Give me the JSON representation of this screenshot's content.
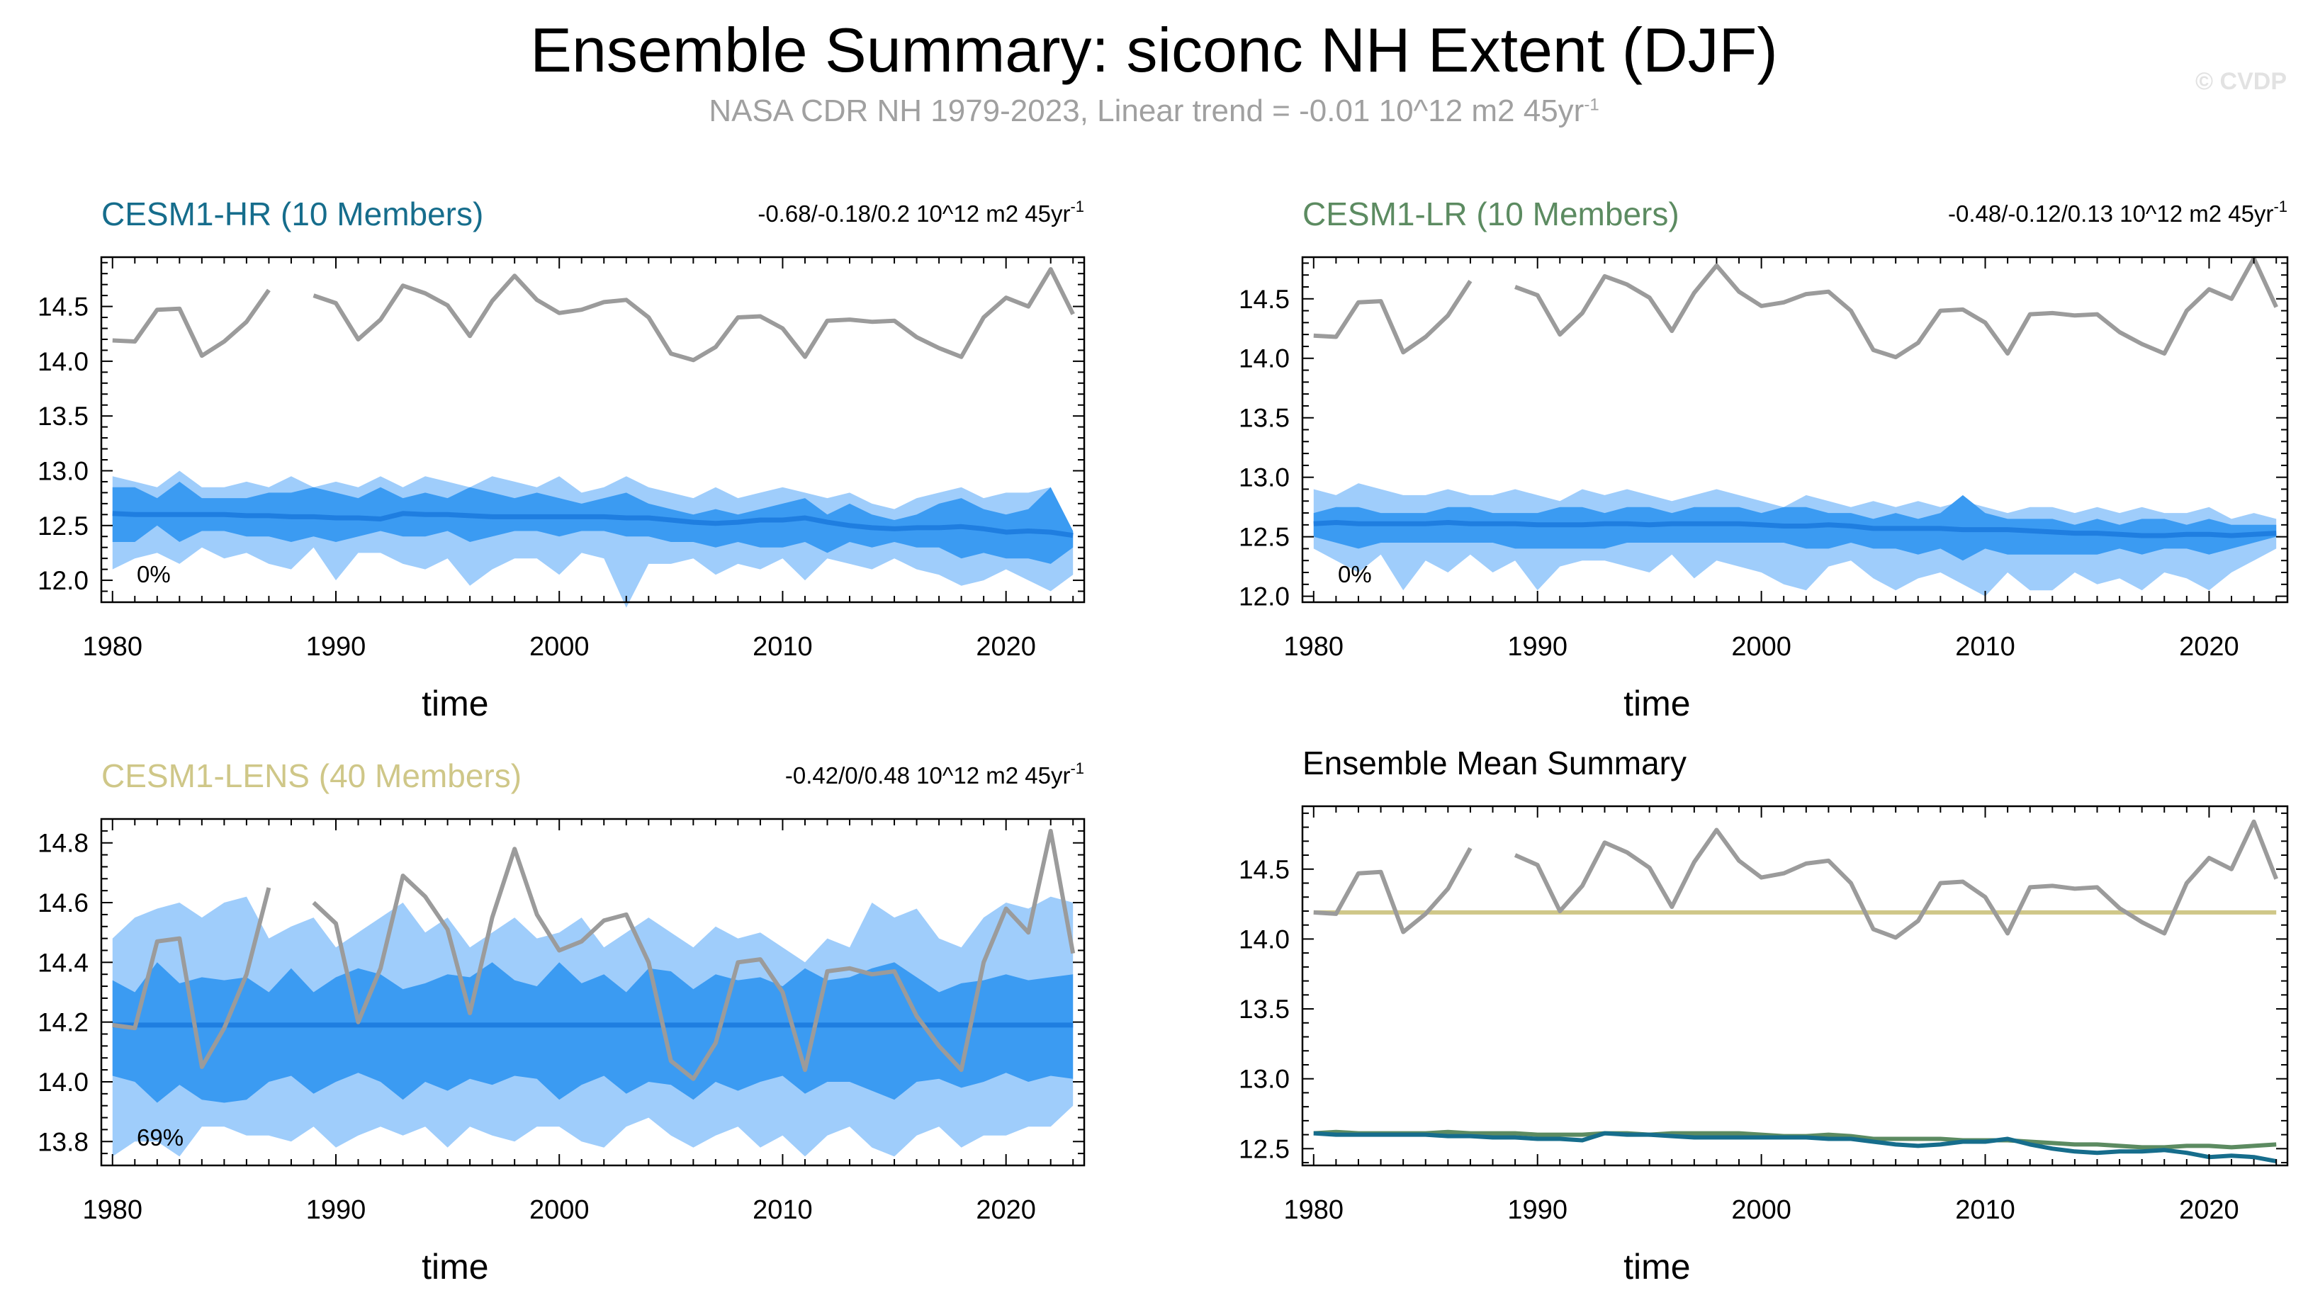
{
  "title": "Ensemble Summary: siconc NH Extent (DJF)",
  "subtitle": "NASA CDR NH 1979-2023, Linear trend = -0.01 10^12 m2 45yr",
  "subtitle_sup": "-1",
  "watermark": "© CVDP",
  "colors": {
    "hr": "#166d8c",
    "lr": "#5c8b61",
    "lens": "#cfc788",
    "obs": "#9b9b9b",
    "spread_outer": "#9fcdfb",
    "spread_inner": "#3b9bf2",
    "ens_mean": "#1f7ee0"
  },
  "chart_data": [
    {
      "id": "hr",
      "type": "area",
      "title": "CESM1-HR (10 Members)",
      "title_color": "#166d8c",
      "trend_label": "-0.68/-0.18/0.2 10^12 m2 45yr",
      "trend_sup": "-1",
      "percent_label": "0%",
      "xlabel": "time",
      "xlim": [
        1979.5,
        2023.5
      ],
      "ylim": [
        11.8,
        14.95
      ],
      "xticks": [
        1980,
        1990,
        2000,
        2010,
        2020
      ],
      "yticks": [
        12.0,
        12.5,
        13.0,
        13.5,
        14.0,
        14.5
      ],
      "ytick_labels": [
        "12.0",
        "12.5",
        "13.0",
        "13.5",
        "14.0",
        "14.5"
      ],
      "spread": {
        "x_start": 1980,
        "outer_lo": [
          12.1,
          12.2,
          12.25,
          12.15,
          12.3,
          12.2,
          12.25,
          12.15,
          12.1,
          12.3,
          12.0,
          12.25,
          12.25,
          12.15,
          12.1,
          12.2,
          11.95,
          12.1,
          12.2,
          12.2,
          12.05,
          12.25,
          12.2,
          11.75,
          12.15,
          12.15,
          12.2,
          12.05,
          12.15,
          12.1,
          12.2,
          12.0,
          12.2,
          12.15,
          12.1,
          12.2,
          12.1,
          12.05,
          11.95,
          12.0,
          12.1,
          12.0,
          11.9,
          12.05
        ],
        "inner_lo": [
          12.35,
          12.35,
          12.5,
          12.35,
          12.45,
          12.45,
          12.4,
          12.4,
          12.35,
          12.4,
          12.35,
          12.4,
          12.45,
          12.4,
          12.4,
          12.45,
          12.35,
          12.4,
          12.45,
          12.45,
          12.4,
          12.45,
          12.45,
          12.4,
          12.4,
          12.35,
          12.35,
          12.3,
          12.35,
          12.3,
          12.3,
          12.35,
          12.25,
          12.35,
          12.3,
          12.35,
          12.3,
          12.3,
          12.2,
          12.25,
          12.2,
          12.2,
          12.15,
          12.3
        ],
        "inner_hi": [
          12.85,
          12.85,
          12.75,
          12.9,
          12.75,
          12.75,
          12.75,
          12.8,
          12.8,
          12.85,
          12.8,
          12.75,
          12.85,
          12.75,
          12.8,
          12.75,
          12.85,
          12.8,
          12.75,
          12.8,
          12.75,
          12.7,
          12.75,
          12.8,
          12.7,
          12.65,
          12.6,
          12.65,
          12.6,
          12.65,
          12.7,
          12.75,
          12.6,
          12.7,
          12.6,
          12.55,
          12.6,
          12.7,
          12.75,
          12.65,
          12.6,
          12.65,
          12.85,
          12.45
        ],
        "outer_hi": [
          12.95,
          12.9,
          12.85,
          13.0,
          12.85,
          12.85,
          12.9,
          12.85,
          12.95,
          12.85,
          12.9,
          12.85,
          12.95,
          12.85,
          12.95,
          12.9,
          12.85,
          12.95,
          12.9,
          12.85,
          12.95,
          12.8,
          12.85,
          12.95,
          12.85,
          12.8,
          12.75,
          12.85,
          12.75,
          12.8,
          12.85,
          12.8,
          12.75,
          12.8,
          12.7,
          12.65,
          12.75,
          12.8,
          12.85,
          12.75,
          12.8,
          12.8,
          12.85,
          12.45
        ]
      },
      "ens_mean": [
        12.61,
        12.6,
        12.6,
        12.6,
        12.6,
        12.6,
        12.59,
        12.59,
        12.58,
        12.58,
        12.57,
        12.57,
        12.56,
        12.61,
        12.6,
        12.6,
        12.59,
        12.58,
        12.58,
        12.58,
        12.58,
        12.58,
        12.58,
        12.57,
        12.57,
        12.55,
        12.53,
        12.52,
        12.53,
        12.55,
        12.55,
        12.57,
        12.53,
        12.5,
        12.48,
        12.47,
        12.48,
        12.48,
        12.49,
        12.47,
        12.44,
        12.45,
        12.44,
        12.41
      ]
    },
    {
      "id": "lr",
      "type": "area",
      "title": "CESM1-LR (10 Members)",
      "title_color": "#5c8b61",
      "trend_label": "-0.48/-0.12/0.13 10^12 m2 45yr",
      "trend_sup": "-1",
      "percent_label": "0%",
      "xlabel": "time",
      "xlim": [
        1979.5,
        2023.5
      ],
      "ylim": [
        11.95,
        14.85
      ],
      "xticks": [
        1980,
        1990,
        2000,
        2010,
        2020
      ],
      "yticks": [
        12.0,
        12.5,
        13.0,
        13.5,
        14.0,
        14.5
      ],
      "ytick_labels": [
        "12.0",
        "12.5",
        "13.0",
        "13.5",
        "14.0",
        "14.5"
      ],
      "spread": {
        "x_start": 1980,
        "outer_lo": [
          12.4,
          12.3,
          12.2,
          12.35,
          12.05,
          12.3,
          12.2,
          12.35,
          12.2,
          12.3,
          12.05,
          12.25,
          12.3,
          12.3,
          12.25,
          12.2,
          12.35,
          12.15,
          12.3,
          12.25,
          12.2,
          12.1,
          12.05,
          12.25,
          12.3,
          12.15,
          12.05,
          12.15,
          12.2,
          12.1,
          12.0,
          12.2,
          12.05,
          12.05,
          12.2,
          12.1,
          12.15,
          12.05,
          12.2,
          12.15,
          12.05,
          12.2,
          12.3,
          12.4
        ],
        "inner_lo": [
          12.5,
          12.45,
          12.4,
          12.45,
          12.45,
          12.45,
          12.45,
          12.45,
          12.45,
          12.4,
          12.4,
          12.4,
          12.4,
          12.4,
          12.45,
          12.45,
          12.45,
          12.45,
          12.45,
          12.45,
          12.45,
          12.45,
          12.4,
          12.4,
          12.45,
          12.4,
          12.4,
          12.35,
          12.4,
          12.3,
          12.4,
          12.35,
          12.35,
          12.35,
          12.35,
          12.35,
          12.4,
          12.35,
          12.4,
          12.4,
          12.35,
          12.4,
          12.45,
          12.5
        ],
        "inner_hi": [
          12.7,
          12.75,
          12.75,
          12.7,
          12.7,
          12.7,
          12.75,
          12.75,
          12.7,
          12.7,
          12.7,
          12.75,
          12.75,
          12.7,
          12.75,
          12.75,
          12.7,
          12.75,
          12.75,
          12.75,
          12.7,
          12.75,
          12.75,
          12.7,
          12.7,
          12.65,
          12.7,
          12.65,
          12.7,
          12.85,
          12.7,
          12.65,
          12.65,
          12.65,
          12.6,
          12.65,
          12.6,
          12.65,
          12.65,
          12.6,
          12.65,
          12.6,
          12.6,
          12.6
        ],
        "outer_hi": [
          12.9,
          12.85,
          12.95,
          12.9,
          12.85,
          12.85,
          12.9,
          12.85,
          12.85,
          12.9,
          12.85,
          12.8,
          12.9,
          12.85,
          12.9,
          12.85,
          12.8,
          12.85,
          12.9,
          12.85,
          12.8,
          12.75,
          12.85,
          12.8,
          12.75,
          12.8,
          12.75,
          12.8,
          12.75,
          12.8,
          12.75,
          12.7,
          12.75,
          12.75,
          12.7,
          12.75,
          12.7,
          12.75,
          12.7,
          12.7,
          12.75,
          12.65,
          12.7,
          12.65
        ]
      },
      "ens_mean": [
        12.61,
        12.62,
        12.61,
        12.61,
        12.61,
        12.61,
        12.62,
        12.61,
        12.61,
        12.61,
        12.6,
        12.6,
        12.6,
        12.61,
        12.61,
        12.6,
        12.61,
        12.61,
        12.61,
        12.61,
        12.6,
        12.59,
        12.59,
        12.6,
        12.59,
        12.57,
        12.57,
        12.57,
        12.57,
        12.56,
        12.56,
        12.56,
        12.55,
        12.54,
        12.53,
        12.53,
        12.52,
        12.51,
        12.51,
        12.52,
        12.52,
        12.51,
        12.52,
        12.53
      ]
    },
    {
      "id": "lens",
      "type": "area",
      "title": "CESM1-LENS (40 Members)",
      "title_color": "#cfc788",
      "trend_label": "-0.42/0/0.48 10^12 m2 45yr",
      "trend_sup": "-1",
      "percent_label": "69%",
      "xlabel": "time",
      "xlim": [
        1979.5,
        2023.5
      ],
      "ylim": [
        13.72,
        14.88
      ],
      "xticks": [
        1980,
        1990,
        2000,
        2010,
        2020
      ],
      "yticks": [
        13.8,
        14.0,
        14.2,
        14.4,
        14.6,
        14.8
      ],
      "ytick_labels": [
        "13.8",
        "14.0",
        "14.2",
        "14.4",
        "14.6",
        "14.8"
      ],
      "spread": {
        "x_start": 1980,
        "outer_lo": [
          13.75,
          13.8,
          13.8,
          13.75,
          13.85,
          13.85,
          13.82,
          13.82,
          13.8,
          13.85,
          13.78,
          13.82,
          13.85,
          13.82,
          13.85,
          13.78,
          13.85,
          13.82,
          13.8,
          13.85,
          13.85,
          13.8,
          13.78,
          13.85,
          13.88,
          13.82,
          13.78,
          13.82,
          13.85,
          13.78,
          13.82,
          13.75,
          13.82,
          13.85,
          13.78,
          13.75,
          13.82,
          13.85,
          13.78,
          13.82,
          13.82,
          13.85,
          13.85,
          13.92
        ],
        "inner_lo": [
          14.02,
          14.0,
          13.93,
          13.99,
          13.94,
          13.93,
          13.94,
          14.0,
          14.02,
          13.96,
          14.0,
          14.03,
          14.0,
          13.94,
          14.0,
          13.97,
          14.01,
          13.99,
          14.02,
          14.01,
          13.94,
          13.99,
          14.02,
          13.96,
          14.0,
          13.99,
          13.94,
          14.0,
          13.97,
          14.0,
          14.02,
          13.96,
          14.0,
          14.0,
          13.97,
          13.94,
          14.0,
          14.01,
          13.98,
          14.0,
          14.03,
          14.0,
          14.02,
          14.01
        ],
        "inner_hi": [
          14.34,
          14.3,
          14.4,
          14.33,
          14.35,
          14.34,
          14.35,
          14.3,
          14.38,
          14.3,
          14.35,
          14.38,
          14.36,
          14.31,
          14.33,
          14.36,
          14.35,
          14.4,
          14.34,
          14.32,
          14.4,
          14.33,
          14.36,
          14.3,
          14.38,
          14.37,
          14.31,
          14.36,
          14.34,
          14.35,
          14.32,
          14.38,
          14.34,
          14.35,
          14.38,
          14.4,
          14.35,
          14.3,
          14.33,
          14.34,
          14.36,
          14.34,
          14.35,
          14.36
        ],
        "outer_hi": [
          14.48,
          14.55,
          14.58,
          14.6,
          14.55,
          14.6,
          14.62,
          14.48,
          14.52,
          14.55,
          14.45,
          14.5,
          14.55,
          14.6,
          14.5,
          14.55,
          14.45,
          14.5,
          14.55,
          14.48,
          14.5,
          14.55,
          14.45,
          14.5,
          14.55,
          14.5,
          14.45,
          14.52,
          14.48,
          14.5,
          14.45,
          14.4,
          14.48,
          14.45,
          14.6,
          14.55,
          14.58,
          14.48,
          14.45,
          14.55,
          14.6,
          14.58,
          14.62,
          14.6
        ]
      },
      "ens_mean": [
        14.19,
        14.19,
        14.19,
        14.19,
        14.19,
        14.19,
        14.19,
        14.19,
        14.19,
        14.19,
        14.19,
        14.19,
        14.19,
        14.19,
        14.19,
        14.19,
        14.19,
        14.19,
        14.19,
        14.19,
        14.19,
        14.19,
        14.19,
        14.19,
        14.19,
        14.19,
        14.19,
        14.19,
        14.19,
        14.19,
        14.19,
        14.19,
        14.19,
        14.19,
        14.19,
        14.19,
        14.19,
        14.19,
        14.19,
        14.19,
        14.19,
        14.19,
        14.19,
        14.19
      ]
    },
    {
      "id": "summary",
      "type": "line",
      "title": "Ensemble Mean Summary",
      "title_color": "#000000",
      "trend_label": "",
      "trend_sup": "",
      "percent_label": "",
      "xlabel": "time",
      "xlim": [
        1979.5,
        2023.5
      ],
      "ylim": [
        12.38,
        14.95
      ],
      "xticks": [
        1980,
        1990,
        2000,
        2010,
        2020
      ],
      "yticks": [
        12.5,
        13.0,
        13.5,
        14.0,
        14.5
      ],
      "ytick_labels": [
        "12.5",
        "13.0",
        "13.5",
        "14.0",
        "14.5"
      ],
      "series": [
        {
          "name": "CESM1-HR",
          "color_key": "hr",
          "values": [
            12.61,
            12.6,
            12.6,
            12.6,
            12.6,
            12.6,
            12.59,
            12.59,
            12.58,
            12.58,
            12.57,
            12.57,
            12.56,
            12.61,
            12.6,
            12.6,
            12.59,
            12.58,
            12.58,
            12.58,
            12.58,
            12.58,
            12.58,
            12.57,
            12.57,
            12.55,
            12.53,
            12.52,
            12.53,
            12.55,
            12.55,
            12.57,
            12.53,
            12.5,
            12.48,
            12.47,
            12.48,
            12.48,
            12.49,
            12.47,
            12.44,
            12.45,
            12.44,
            12.41
          ]
        },
        {
          "name": "CESM1-LR",
          "color_key": "lr",
          "values": [
            12.61,
            12.62,
            12.61,
            12.61,
            12.61,
            12.61,
            12.62,
            12.61,
            12.61,
            12.61,
            12.6,
            12.6,
            12.6,
            12.61,
            12.61,
            12.6,
            12.61,
            12.61,
            12.61,
            12.61,
            12.6,
            12.59,
            12.59,
            12.6,
            12.59,
            12.57,
            12.57,
            12.57,
            12.57,
            12.56,
            12.56,
            12.56,
            12.55,
            12.54,
            12.53,
            12.53,
            12.52,
            12.51,
            12.51,
            12.52,
            12.52,
            12.51,
            12.52,
            12.53
          ]
        },
        {
          "name": "CESM1-LENS",
          "color_key": "lens",
          "values": [
            14.19,
            14.19,
            14.19,
            14.19,
            14.19,
            14.19,
            14.19,
            14.19,
            14.19,
            14.19,
            14.19,
            14.19,
            14.19,
            14.19,
            14.19,
            14.19,
            14.19,
            14.19,
            14.19,
            14.19,
            14.19,
            14.19,
            14.19,
            14.19,
            14.19,
            14.19,
            14.19,
            14.19,
            14.19,
            14.19,
            14.19,
            14.19,
            14.19,
            14.19,
            14.19,
            14.19,
            14.19,
            14.19,
            14.19,
            14.19,
            14.19,
            14.19,
            14.19,
            14.19
          ]
        }
      ]
    }
  ],
  "observations": {
    "name": "NASA CDR NH",
    "x_start": 1980,
    "values": [
      14.19,
      14.18,
      14.47,
      14.48,
      14.05,
      14.18,
      14.36,
      14.65,
      null,
      14.6,
      14.53,
      14.2,
      14.38,
      14.69,
      14.62,
      14.51,
      14.23,
      14.55,
      14.78,
      14.56,
      14.44,
      14.47,
      14.54,
      14.56,
      14.4,
      14.07,
      14.01,
      14.13,
      14.4,
      14.41,
      14.3,
      14.04,
      14.37,
      14.38,
      14.36,
      14.37,
      14.22,
      14.12,
      14.04,
      14.4,
      14.58,
      14.5,
      14.84,
      14.43
    ]
  }
}
